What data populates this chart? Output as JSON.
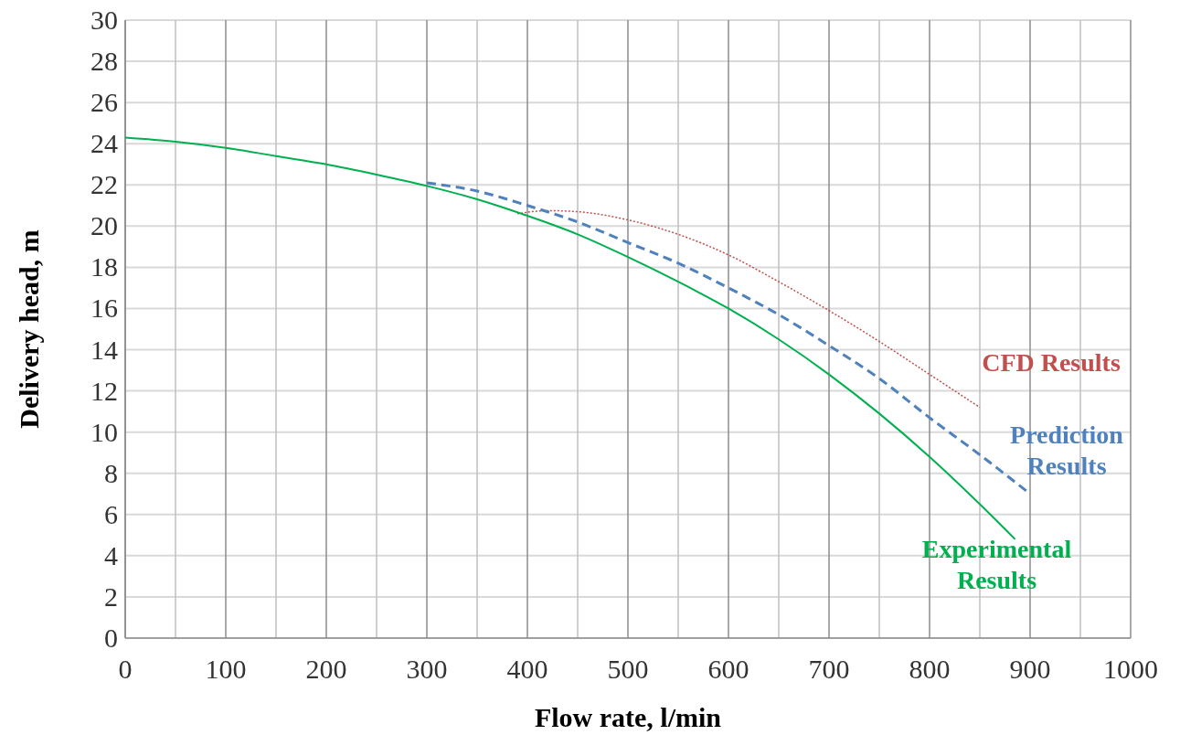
{
  "chart_data": {
    "type": "line",
    "xlabel": "Flow rate, l/min",
    "ylabel": "Delivery head, m",
    "xlim": [
      0,
      1000
    ],
    "ylim": [
      0,
      30
    ],
    "xticks": [
      0,
      100,
      200,
      300,
      400,
      500,
      600,
      700,
      800,
      900,
      1000
    ],
    "yticks": [
      0,
      2,
      4,
      6,
      8,
      10,
      12,
      14,
      16,
      18,
      20,
      22,
      24,
      26,
      28,
      30
    ],
    "grid": true,
    "series": [
      {
        "name": "CFD Results",
        "color": "#c0504d",
        "line_style": "dotted",
        "x": [
          390,
          420,
          450,
          500,
          550,
          600,
          650,
          700,
          750,
          800,
          850
        ],
        "values": [
          20.6,
          20.75,
          20.7,
          20.3,
          19.6,
          18.6,
          17.3,
          15.9,
          14.4,
          12.8,
          11.2
        ]
      },
      {
        "name": "Prediction Results",
        "color": "#4f81bd",
        "line_style": "dashed",
        "x": [
          300,
          350,
          400,
          450,
          500,
          550,
          600,
          650,
          700,
          750,
          800,
          850,
          900
        ],
        "values": [
          22.1,
          21.7,
          21.0,
          20.2,
          19.2,
          18.2,
          17.0,
          15.7,
          14.2,
          12.6,
          10.7,
          8.9,
          7.0
        ]
      },
      {
        "name": "Experimental Results",
        "color": "#00b050",
        "line_style": "solid",
        "x": [
          0,
          50,
          100,
          150,
          200,
          250,
          300,
          350,
          400,
          450,
          500,
          550,
          600,
          650,
          700,
          750,
          800,
          850,
          885
        ],
        "values": [
          24.3,
          24.1,
          23.8,
          23.4,
          23.0,
          22.5,
          21.95,
          21.3,
          20.5,
          19.6,
          18.5,
          17.3,
          16.0,
          14.5,
          12.8,
          10.9,
          8.8,
          6.5,
          4.8
        ]
      }
    ]
  }
}
